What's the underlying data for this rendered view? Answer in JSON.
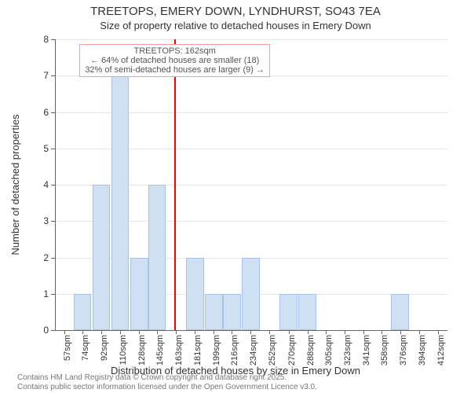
{
  "title": "TREETOPS, EMERY DOWN, LYNDHURST, SO43 7EA",
  "subtitle": "Size of property relative to detached houses in Emery Down",
  "y_label": "Number of detached properties",
  "x_label": "Distribution of detached houses by size in Emery Down",
  "chart": {
    "type": "histogram",
    "background_color": "#ffffff",
    "grid_color": "#e6e6e6",
    "axis_color": "#666666",
    "bar_fill": "#cfe0f3",
    "bar_stroke": "#a8c3e6",
    "marker_color": "#ff0000",
    "marker_x": 162,
    "ylim": [
      0,
      8
    ],
    "ytick_step": 1,
    "xlim": [
      48,
      421
    ],
    "xticks": [
      57,
      74,
      92,
      110,
      128,
      145,
      163,
      181,
      199,
      216,
      234,
      252,
      270,
      288,
      305,
      323,
      341,
      358,
      376,
      394,
      412
    ],
    "xtick_unit": "sqm",
    "bar_relative_width": 0.95,
    "bars": [
      {
        "x": 57,
        "count": 0
      },
      {
        "x": 74,
        "count": 1
      },
      {
        "x": 92,
        "count": 4
      },
      {
        "x": 110,
        "count": 7
      },
      {
        "x": 128,
        "count": 2
      },
      {
        "x": 145,
        "count": 4
      },
      {
        "x": 163,
        "count": 0
      },
      {
        "x": 181,
        "count": 2
      },
      {
        "x": 199,
        "count": 1
      },
      {
        "x": 216,
        "count": 1
      },
      {
        "x": 234,
        "count": 2
      },
      {
        "x": 252,
        "count": 0
      },
      {
        "x": 270,
        "count": 1
      },
      {
        "x": 288,
        "count": 1
      },
      {
        "x": 305,
        "count": 0
      },
      {
        "x": 323,
        "count": 0
      },
      {
        "x": 341,
        "count": 0
      },
      {
        "x": 358,
        "count": 0
      },
      {
        "x": 376,
        "count": 1
      },
      {
        "x": 394,
        "count": 0
      },
      {
        "x": 412,
        "count": 0
      }
    ],
    "annotation": {
      "line1": "TREETOPS: 162sqm",
      "line2": "← 64% of detached houses are smaller (18)",
      "line3": "32% of semi-detached houses are larger (9) →",
      "border_color": "#ff9999",
      "bg_color": "#ffffff",
      "text_color": "#555555"
    },
    "label_fontsize": 13,
    "tick_fontsize": 12
  },
  "footer": {
    "line1": "Contains HM Land Registry data © Crown copyright and database right 2025.",
    "line2": "Contains public sector information licensed under the Open Government Licence v3.0.",
    "color": "#777777"
  }
}
